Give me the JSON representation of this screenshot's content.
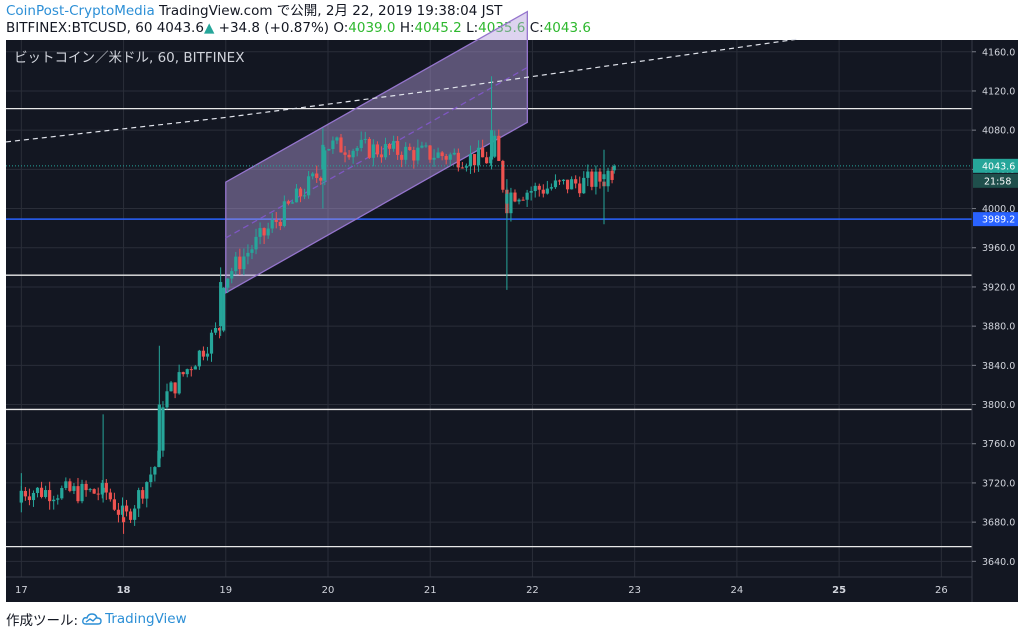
{
  "header": {
    "source": "CoinPost-CryptoMedia",
    "published": "TradingView.com で公開, 2月 22, 2019 19:38:04 JST",
    "symbol_line": "BITFINEX:BTCUSD, 60 4043.6",
    "change_arrow": "▲",
    "change": "+34.8 (+0.87%)",
    "o_label": "O:",
    "o_value": "4039.0",
    "h_label": "H:",
    "h_value": "4045.2",
    "l_label": "L:",
    "l_value": "4035.6",
    "c_label": "C:",
    "c_value": "4043.6"
  },
  "legend_text": "ビットコイン／米ドル, 60, BITFINEX",
  "footer": {
    "created_with": "作成ツール:",
    "brand": "TradingView"
  },
  "colors": {
    "background": "#131722",
    "grid": "#2a2e39",
    "up": "#26a69a",
    "down": "#ef5350",
    "channel_fill": "#b39ddb",
    "blue_line": "#2962ff",
    "current_label": "#26a69a"
  },
  "chart_data": {
    "type": "candlestick",
    "title": "ビットコイン／米ドル, 60, BITFINEX",
    "timeframe": "60",
    "xlabel": "",
    "ylabel": "",
    "x_ticks": [
      "17",
      "18",
      "19",
      "20",
      "21",
      "22",
      "23",
      "24",
      "25",
      "26"
    ],
    "x_range": [
      16.85,
      26.3
    ],
    "y_ticks": [
      3640,
      3680,
      3720,
      3760,
      3800,
      3840,
      3880,
      3920,
      3960,
      4000,
      4040,
      4080,
      4120,
      4160
    ],
    "y_tick_labels": [
      "3640.0",
      "3680.0",
      "3720.0",
      "3760.0",
      "3800.0",
      "3840.0",
      "3880.0",
      "3920.0",
      "3960.0",
      "4000.0",
      "4040.0",
      "4080.0",
      "4120.0",
      "4160.0"
    ],
    "ylim": [
      3624,
      4172
    ],
    "current_price": 4043.6,
    "current_price_label": "4043.6",
    "countdown": "21:58",
    "blue_level": 3989.2,
    "blue_level_label": "3989.2",
    "horizontal_levels": [
      4102,
      3932,
      3795,
      3655
    ],
    "channel": {
      "lower": [
        [
          19.0,
          3914
        ],
        [
          21.95,
          4088
        ]
      ],
      "upper": [
        [
          19.0,
          4027
        ],
        [
          21.95,
          4201
        ]
      ],
      "mid": [
        [
          19.0,
          3970
        ],
        [
          21.95,
          4144
        ]
      ]
    },
    "trend_dashed": [
      [
        16.85,
        4068
      ],
      [
        19.0,
        4093
      ],
      [
        21.0,
        4120
      ],
      [
        24.6,
        4173
      ]
    ],
    "key_ohlc": [
      {
        "x": 17.0,
        "o": 3700,
        "h": 3730,
        "l": 3690,
        "c": 3712
      },
      {
        "x": 17.8,
        "o": 3710,
        "h": 3790,
        "l": 3700,
        "c": 3715
      },
      {
        "x": 18.0,
        "o": 3685,
        "h": 3695,
        "l": 3668,
        "c": 3680
      },
      {
        "x": 18.35,
        "o": 3745,
        "h": 3860,
        "l": 3740,
        "c": 3800
      },
      {
        "x": 18.95,
        "o": 3880,
        "h": 3940,
        "l": 3870,
        "c": 3925
      },
      {
        "x": 19.95,
        "o": 4040,
        "h": 4082,
        "l": 4000,
        "c": 4065
      },
      {
        "x": 21.6,
        "o": 4050,
        "h": 4135,
        "l": 4040,
        "c": 4080
      },
      {
        "x": 21.75,
        "o": 4005,
        "h": 4030,
        "l": 3917,
        "c": 4015
      },
      {
        "x": 22.7,
        "o": 4030,
        "h": 4060,
        "l": 3984,
        "c": 4035
      },
      {
        "x": 22.8,
        "o": 4039.0,
        "h": 4045.2,
        "l": 4035.6,
        "c": 4043.6
      }
    ]
  }
}
